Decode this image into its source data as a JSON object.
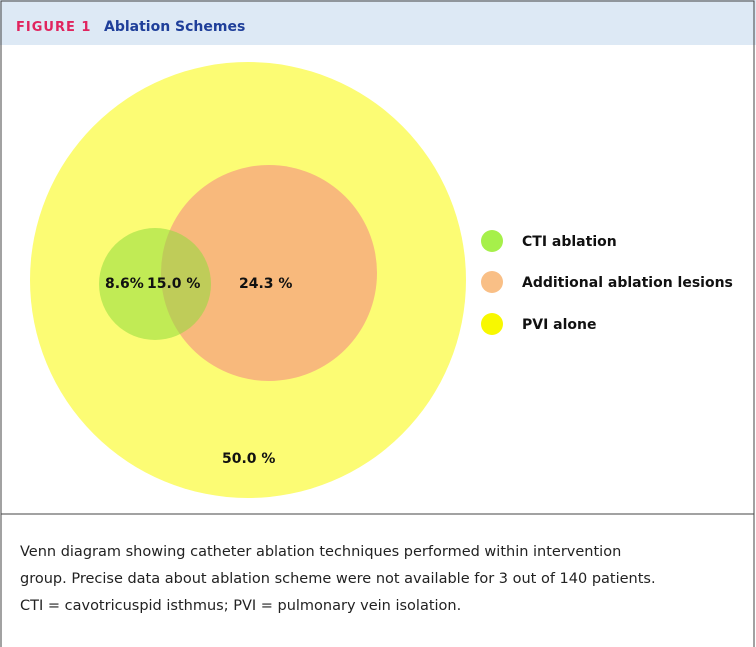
{
  "header": {
    "label": "FIGURE 1",
    "title": "Ablation Schemes"
  },
  "regions": [
    {
      "name": "CTI only",
      "label": "8.6%"
    },
    {
      "name": "CTI and additional",
      "label": "15.0 %"
    },
    {
      "name": "Additional only",
      "label": "24.3 %"
    },
    {
      "name": "PVI alone",
      "label": "50.0 %"
    }
  ],
  "legend": [
    "CTI ablation",
    "Additional ablation lesions",
    "PVI alone"
  ],
  "caption": [
    "Venn diagram showing catheter ablation techniques performed within intervention",
    "group. Precise data about ablation scheme were not available for 3 out of 140 patients.",
    "CTI = cavotricuspid isthmus; PVI = pulmonary vein isolation."
  ]
}
